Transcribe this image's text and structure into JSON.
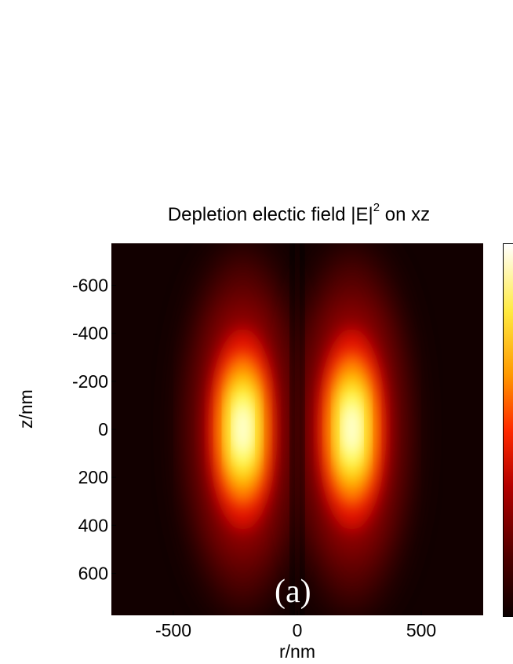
{
  "chart_data": {
    "type": "heatmap",
    "title": "Depletion electic field |E|",
    "title_superscript": "2",
    "title_suffix": "on xz",
    "xlabel": "r/nm",
    "ylabel": "z/nm",
    "xlim": [
      -750,
      750
    ],
    "ylim": [
      -775,
      775
    ],
    "y_axis_inverted": true,
    "xticks": [
      -500,
      0,
      500
    ],
    "yticks": [
      -600,
      -400,
      -200,
      0,
      200,
      400,
      600
    ],
    "colormap": "hot",
    "colorbar": true,
    "annotation": "(a)",
    "lobes": [
      {
        "r": -220,
        "z": 0,
        "peak": 1.0
      },
      {
        "r": 220,
        "z": 0,
        "peak": 1.0
      }
    ]
  }
}
